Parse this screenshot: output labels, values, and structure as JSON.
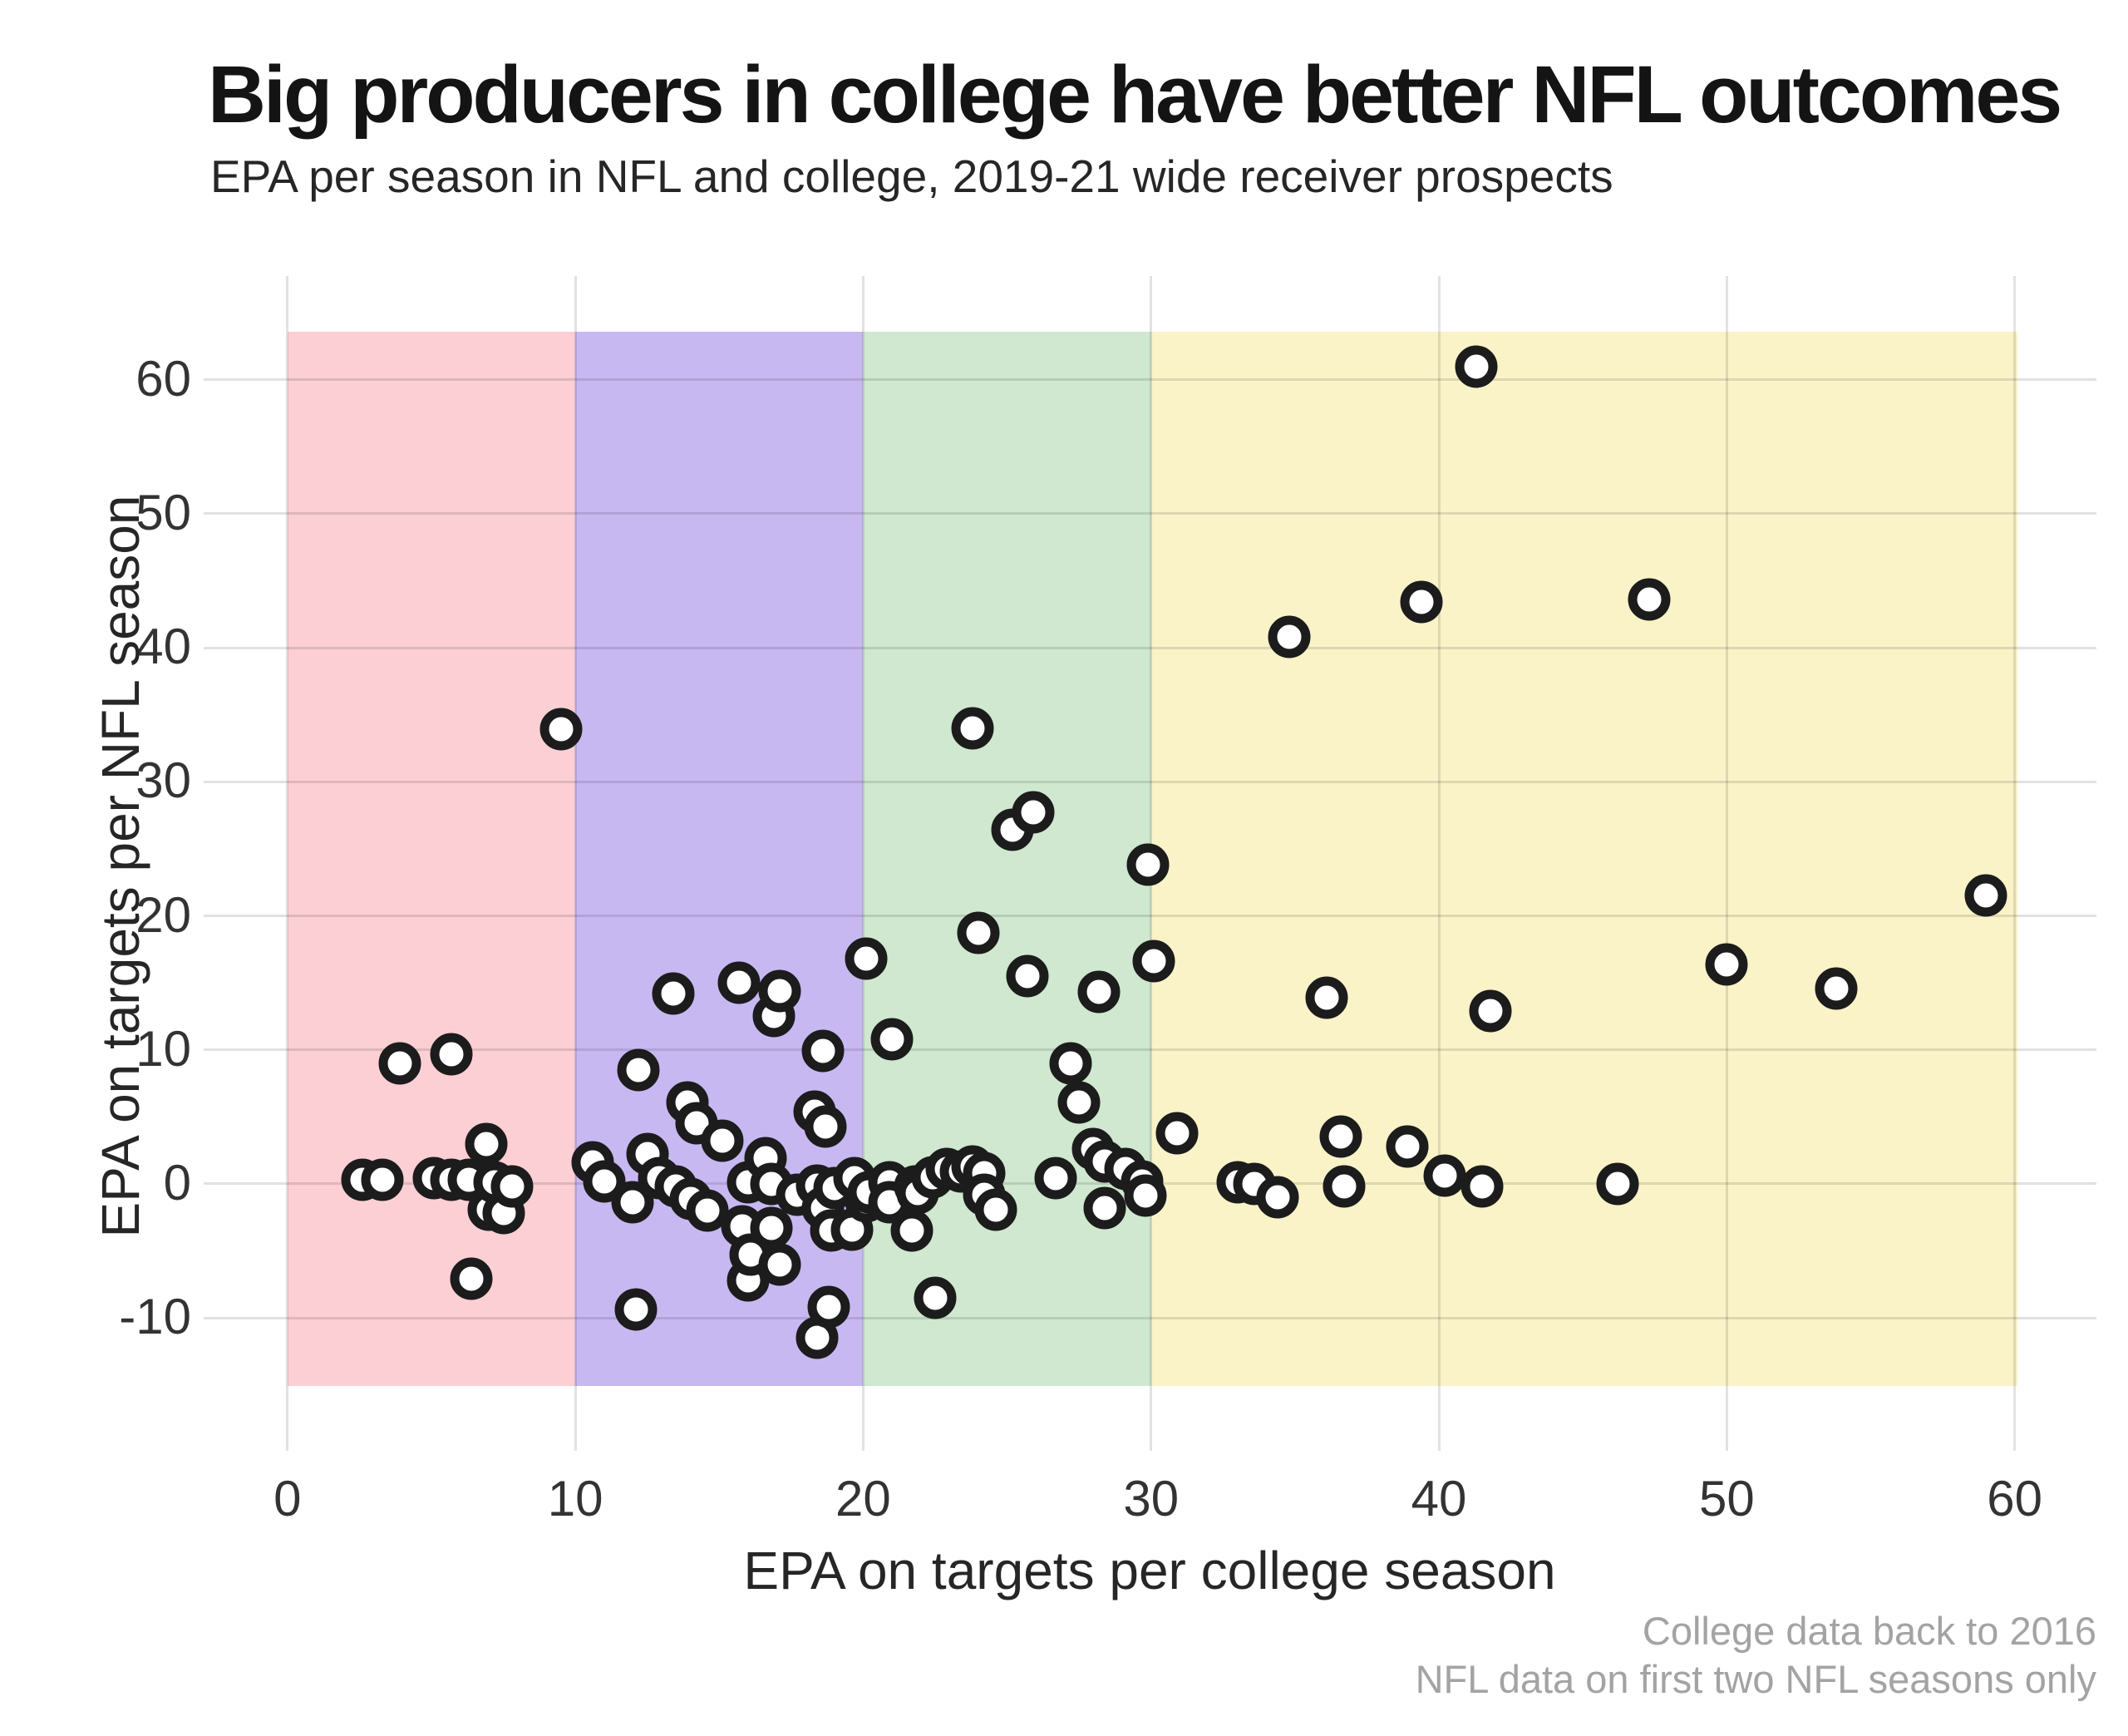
{
  "header": {
    "title": "Big producers in college have better NFL outcomes",
    "subtitle": "EPA per season in NFL and college, 2019-21 wide receiver prospects"
  },
  "caption": {
    "line1": "College data back to 2016",
    "line2": "NFL data on first two NFL seasons only"
  },
  "chart_data": {
    "type": "scatter",
    "title": "Big producers in college have better NFL outcomes",
    "xlabel": "EPA on targets per college season",
    "ylabel": "EPA on targets per NFL season",
    "xlim": [
      -2.91,
      62.84
    ],
    "ylim": [
      -19.92,
      67.74
    ],
    "x_ticks": [
      0,
      10,
      20,
      30,
      40,
      50,
      60
    ],
    "y_ticks": [
      -10,
      0,
      10,
      20,
      30,
      40,
      50,
      60
    ],
    "grid": "on",
    "legend": "none",
    "marker": {
      "fill": "#ffffff",
      "stroke": "#1c1c1c"
    },
    "bands": [
      {
        "name": "band-0-10",
        "x0": 0,
        "x1": 10,
        "y0": -15.1,
        "y1": 63.6,
        "color": "#fbcfd4"
      },
      {
        "name": "band-10-20",
        "x0": 10,
        "x1": 20,
        "y0": -15.1,
        "y1": 63.6,
        "color": "#c8b8f2"
      },
      {
        "name": "band-20-30",
        "x0": 20,
        "x1": 30,
        "y0": -15.1,
        "y1": 63.6,
        "color": "#cfe8cf"
      },
      {
        "name": "band-30-60",
        "x0": 30,
        "x1": 60.1,
        "y0": -15.1,
        "y1": 63.6,
        "color": "#faf3c8"
      }
    ],
    "points": [
      [
        2.6,
        0.3
      ],
      [
        3.3,
        0.3
      ],
      [
        3.9,
        9.0
      ],
      [
        5.1,
        0.4
      ],
      [
        5.7,
        0.3
      ],
      [
        5.7,
        9.7
      ],
      [
        6.3,
        0.3
      ],
      [
        6.4,
        -7.1
      ],
      [
        6.9,
        3.0
      ],
      [
        7.0,
        -1.9
      ],
      [
        7.2,
        0.1
      ],
      [
        7.5,
        -2.2
      ],
      [
        7.8,
        -0.2
      ],
      [
        9.5,
        33.9
      ],
      [
        10.6,
        1.6
      ],
      [
        11.0,
        0.2
      ],
      [
        12.0,
        -1.4
      ],
      [
        12.1,
        -9.4
      ],
      [
        12.2,
        8.5
      ],
      [
        12.5,
        2.2
      ],
      [
        12.9,
        0.4
      ],
      [
        13.4,
        14.2
      ],
      [
        13.5,
        -0.2
      ],
      [
        13.9,
        6.1
      ],
      [
        14.0,
        -1.1
      ],
      [
        14.2,
        4.5
      ],
      [
        14.6,
        -2.0
      ],
      [
        15.1,
        3.2
      ],
      [
        15.7,
        15.0
      ],
      [
        15.8,
        -3.2
      ],
      [
        16.0,
        0.1
      ],
      [
        16.0,
        -7.2
      ],
      [
        16.1,
        -5.3
      ],
      [
        16.6,
        1.9
      ],
      [
        16.8,
        0.0
      ],
      [
        16.8,
        -3.3
      ],
      [
        16.9,
        12.5
      ],
      [
        17.1,
        14.4
      ],
      [
        17.1,
        -6.0
      ],
      [
        17.7,
        -0.8
      ],
      [
        18.3,
        5.4
      ],
      [
        18.4,
        -0.1
      ],
      [
        18.4,
        -11.5
      ],
      [
        18.6,
        9.9
      ],
      [
        18.6,
        -1.8
      ],
      [
        18.7,
        4.3
      ],
      [
        18.8,
        -9.2
      ],
      [
        18.9,
        -3.5
      ],
      [
        19.0,
        -0.3
      ],
      [
        19.6,
        -3.4
      ],
      [
        19.7,
        0.4
      ],
      [
        20.1,
        16.8
      ],
      [
        20.1,
        -1.3
      ],
      [
        20.2,
        -0.6
      ],
      [
        20.9,
        0.1
      ],
      [
        20.9,
        -1.4
      ],
      [
        21.0,
        10.8
      ],
      [
        21.7,
        -3.5
      ],
      [
        21.8,
        -0.2
      ],
      [
        21.9,
        -0.7
      ],
      [
        22.4,
        0.5
      ],
      [
        22.5,
        -8.5
      ],
      [
        22.9,
        1.1
      ],
      [
        23.4,
        0.9
      ],
      [
        23.8,
        1.3
      ],
      [
        23.8,
        34.0
      ],
      [
        24.0,
        18.7
      ],
      [
        24.2,
        0.8
      ],
      [
        24.2,
        -0.8
      ],
      [
        24.6,
        -1.9
      ],
      [
        25.2,
        26.4
      ],
      [
        25.7,
        15.5
      ],
      [
        25.9,
        27.7
      ],
      [
        26.7,
        0.4
      ],
      [
        27.2,
        9.0
      ],
      [
        27.5,
        6.1
      ],
      [
        28.0,
        2.6
      ],
      [
        28.2,
        14.3
      ],
      [
        28.4,
        1.7
      ],
      [
        28.4,
        -1.8
      ],
      [
        29.1,
        1.1
      ],
      [
        29.7,
        0.2
      ],
      [
        29.8,
        -0.9
      ],
      [
        29.9,
        23.8
      ],
      [
        30.1,
        16.6
      ],
      [
        30.9,
        3.8
      ],
      [
        33.0,
        0.1
      ],
      [
        33.6,
        0.0
      ],
      [
        34.4,
        -1.0
      ],
      [
        34.8,
        40.8
      ],
      [
        36.1,
        13.9
      ],
      [
        36.6,
        3.5
      ],
      [
        36.7,
        -0.2
      ],
      [
        38.9,
        2.8
      ],
      [
        39.4,
        43.4
      ],
      [
        40.2,
        0.6
      ],
      [
        41.3,
        61.0
      ],
      [
        41.5,
        -0.2
      ],
      [
        41.8,
        12.9
      ],
      [
        46.2,
        0.0
      ],
      [
        47.3,
        43.6
      ],
      [
        50.0,
        16.4
      ],
      [
        53.8,
        14.6
      ],
      [
        59.0,
        21.5
      ]
    ]
  }
}
